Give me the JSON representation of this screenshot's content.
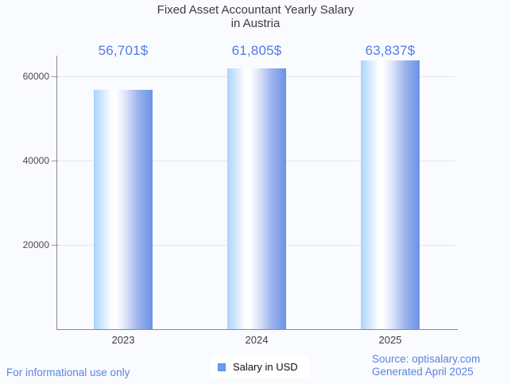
{
  "page": {
    "background_color": "#fafbfe",
    "accent_blue": "#5a83e3",
    "bar_gradient": [
      "#a9d3fd",
      "#ffffff",
      "#6b92e5"
    ],
    "legend_swatch_color": "#6c9bea"
  },
  "chart_data": {
    "type": "bar",
    "title": "Fixed Asset Accountant Yearly Salary in Austria",
    "title_lines": [
      "Fixed Asset Accountant Yearly Salary",
      "in Austria"
    ],
    "categories": [
      "2023",
      "2024",
      "2025"
    ],
    "series": [
      {
        "name": "Salary in USD",
        "values": [
          56701,
          61805,
          63837
        ]
      }
    ],
    "value_labels": [
      "56,701$",
      "61,805$",
      "63,837$"
    ],
    "xlabel": "",
    "ylabel": "",
    "ylim": [
      0,
      65000
    ],
    "yticks": [
      20000,
      40000,
      60000
    ],
    "ytick_labels": [
      "20000",
      "40000",
      "60000"
    ],
    "grid": true,
    "legend_position": "bottom"
  },
  "legend": {
    "label": "Salary in USD"
  },
  "footer": {
    "left": "For informational use only",
    "source": "Source: optisalary.com",
    "generated": "Generated April 2025"
  }
}
